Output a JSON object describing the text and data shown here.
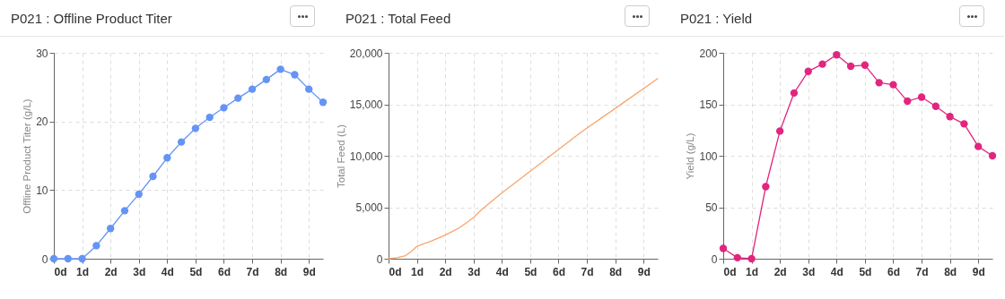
{
  "chart_data": [
    {
      "type": "line",
      "title": "P021 : Offline Product Titer",
      "ylabel": "Offline Product Titer (g/L)",
      "x": [
        0,
        0.5,
        1,
        1.5,
        2,
        2.5,
        3,
        3.5,
        4,
        4.5,
        5,
        5.5,
        6,
        6.5,
        7,
        7.5,
        8,
        8.5,
        9,
        9.5
      ],
      "series": [
        {
          "color": "#6494f5",
          "values": [
            0,
            0,
            0,
            1.9,
            4.4,
            7.0,
            9.4,
            12.0,
            14.7,
            17.0,
            19.0,
            20.6,
            22.0,
            23.4,
            24.7,
            26.1,
            27.6,
            26.8,
            24.7,
            22.8
          ]
        }
      ],
      "xlim": [
        0,
        9.5
      ],
      "xticks": [
        {
          "value": 0,
          "label": "0d"
        },
        {
          "value": 1,
          "label": "1d"
        },
        {
          "value": 2,
          "label": "2d"
        },
        {
          "value": 3,
          "label": "3d"
        },
        {
          "value": 4,
          "label": "4d"
        },
        {
          "value": 5,
          "label": "5d"
        },
        {
          "value": 6,
          "label": "6d"
        },
        {
          "value": 7,
          "label": "7d"
        },
        {
          "value": 8,
          "label": "8d"
        },
        {
          "value": 9,
          "label": "9d"
        }
      ],
      "ylim": [
        0,
        30
      ],
      "yticks": [
        0,
        10,
        20,
        30
      ],
      "grid": true,
      "marker": "circle",
      "line_style": "solid"
    },
    {
      "type": "line",
      "title": "P021 : Total Feed",
      "ylabel": "Total Feed (L)",
      "series": [
        {
          "color": "#f8a56e",
          "x": [
            0,
            0.3,
            0.6,
            0.8,
            1.0,
            1.5,
            2.0,
            2.5,
            3.0,
            3.3,
            4,
            5,
            6,
            6.8,
            8,
            9.5
          ],
          "values": [
            0,
            100,
            300,
            700,
            1200,
            1700,
            2300,
            3000,
            4000,
            4800,
            6400,
            8500,
            10600,
            12300,
            14600,
            17500
          ]
        }
      ],
      "xlim": [
        0,
        9.5
      ],
      "xticks": [
        {
          "value": 0,
          "label": "0d"
        },
        {
          "value": 1,
          "label": "1d"
        },
        {
          "value": 2,
          "label": "2d"
        },
        {
          "value": 3,
          "label": "3d"
        },
        {
          "value": 4,
          "label": "4d"
        },
        {
          "value": 5,
          "label": "5d"
        },
        {
          "value": 6,
          "label": "6d"
        },
        {
          "value": 7,
          "label": "7d"
        },
        {
          "value": 8,
          "label": "8d"
        },
        {
          "value": 9,
          "label": "9d"
        }
      ],
      "ylim": [
        0,
        20000
      ],
      "yticks": [
        0,
        {
          "value": 5000,
          "label": "5,000"
        },
        {
          "value": 10000,
          "label": "10,000"
        },
        {
          "value": 15000,
          "label": "15,000"
        },
        {
          "value": 20000,
          "label": "20,000"
        }
      ],
      "grid": true,
      "marker": "none",
      "line_style": "solid"
    },
    {
      "type": "line",
      "title": "P021 : Yield",
      "ylabel": "Yield (g/L)",
      "x": [
        0,
        0.5,
        1,
        1.5,
        2,
        2.5,
        3,
        3.5,
        4,
        4.5,
        5,
        5.5,
        6,
        6.5,
        7,
        7.5,
        8,
        8.5,
        9,
        9.5
      ],
      "series": [
        {
          "color": "#e0267f",
          "values": [
            10,
            1,
            0,
            70,
            124,
            161,
            182,
            189,
            198,
            187,
            188,
            171,
            169,
            153,
            157,
            148,
            138,
            131,
            109,
            100
          ]
        }
      ],
      "xlim": [
        0,
        9.5
      ],
      "xticks": [
        {
          "value": 0,
          "label": "0d"
        },
        {
          "value": 1,
          "label": "1d"
        },
        {
          "value": 2,
          "label": "2d"
        },
        {
          "value": 3,
          "label": "3d"
        },
        {
          "value": 4,
          "label": "4d"
        },
        {
          "value": 5,
          "label": "5d"
        },
        {
          "value": 6,
          "label": "6d"
        },
        {
          "value": 7,
          "label": "7d"
        },
        {
          "value": 8,
          "label": "8d"
        },
        {
          "value": 9,
          "label": "9d"
        }
      ],
      "ylim": [
        0,
        200
      ],
      "yticks": [
        0,
        50,
        100,
        150,
        200
      ],
      "grid": true,
      "marker": "circle",
      "line_style": "solid"
    }
  ]
}
